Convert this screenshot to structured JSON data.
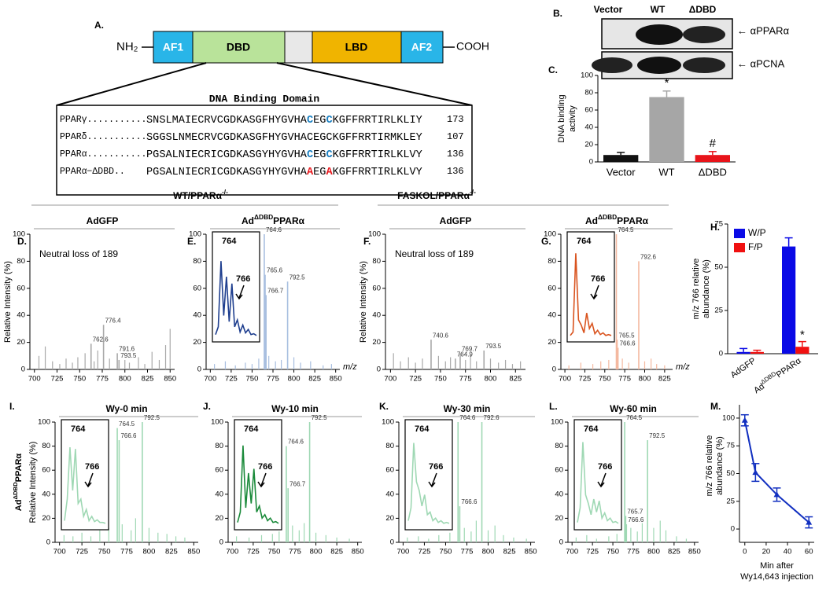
{
  "domain_diagram": {
    "panel": "A.",
    "n_term": "NH₂",
    "c_term": "COOH",
    "domains": [
      "AF1",
      "DBD",
      "LBD",
      "AF2"
    ]
  },
  "sequence_box": {
    "title": "DNA Binding Domain",
    "rows": [
      {
        "name": "PPARγ...........",
        "sequence": [
          "SNSLMAIECRVCGDKASGFHYGVHA",
          "C",
          "EG",
          "C",
          "KGFFRRTIRLKLIY"
        ],
        "end": "173",
        "highlight": "#1a7fc1"
      },
      {
        "name": "PPARδ...........",
        "sequence": [
          "SGGSLNMECRVCGDKASGFHYGVHACEGCKGFFRRTIRMKLEY"
        ],
        "end": "107"
      },
      {
        "name": "PPARα...........",
        "sequence": [
          "PGSALNIECRICGDKASGYHYGVHA",
          "C",
          "EG",
          "C",
          "KGFFRRTIRLKLVY"
        ],
        "end": "136",
        "highlight": "#1a7fc1"
      },
      {
        "name": "PPARα−ΔDBD..",
        "sequence": [
          "PGSALNIECRICGDKASGYHYGVHA",
          "A",
          "EG",
          "A",
          "KGFFRRTIRLKLVY"
        ],
        "end": "136",
        "highlight": "#e8141a"
      }
    ]
  },
  "blot": {
    "panel": "B.",
    "lanes": [
      "Vector",
      "WT",
      "ΔDBD"
    ],
    "antibodies": [
      "← αPPARα",
      "← αPCNA"
    ]
  },
  "groups": [
    [
      "WT/PPARα",
      "-/-"
    ],
    [
      "FASKOL/PPARα",
      "-/-"
    ]
  ],
  "chart_data": [
    {
      "type": "bar",
      "panel": "C.",
      "ylabel": [
        "DNA binding",
        "activity"
      ],
      "categories": [
        "Vector",
        "WT",
        "ΔDBD"
      ],
      "values": [
        8,
        75,
        8
      ],
      "errors": [
        3,
        7,
        4
      ],
      "colors": [
        "#111111",
        "#a6a6a6",
        "#e8141a"
      ],
      "annotations": [
        null,
        "*",
        "#"
      ],
      "ylim": [
        0,
        100
      ],
      "yticks": [
        0,
        20,
        40,
        60,
        80,
        100
      ]
    },
    {
      "type": "spectrum",
      "panel": "D.",
      "title": "AdGFP",
      "ylabel": "Relative Intensity (%)",
      "annotation": "Neutral loss of 189",
      "color": "#a9a9a9",
      "xlim": [
        695,
        855
      ],
      "xticks": [
        700,
        725,
        750,
        775,
        800,
        825,
        850
      ],
      "ylim": [
        0,
        100
      ],
      "yticks": [
        0,
        20,
        40,
        60,
        80,
        100
      ],
      "peaks": {
        "x": [
          776.4,
          762.6,
          791.6,
          793.5
        ],
        "values": [
          33,
          19,
          12,
          7
        ]
      },
      "minor": {
        "x": [
          705,
          712,
          720,
          728,
          735,
          742,
          748,
          756,
          766,
          770,
          783,
          800,
          805,
          815,
          822,
          830,
          838,
          845,
          850
        ],
        "values": [
          10,
          17,
          6,
          4,
          8,
          5,
          9,
          12,
          6,
          14,
          8,
          7,
          5,
          9,
          4,
          13,
          7,
          18,
          30
        ]
      }
    },
    {
      "type": "spectrum",
      "panel": "E.",
      "title": [
        "Ad",
        "ΔDBD",
        "PPARα"
      ],
      "xlabel": "m/z",
      "color": "#a8bfe0",
      "xlim": [
        695,
        855
      ],
      "xticks": [
        700,
        725,
        750,
        775,
        800,
        825,
        850
      ],
      "ylim": [
        0,
        100
      ],
      "yticks": [
        0,
        20,
        40,
        60,
        80,
        100
      ],
      "peaks": {
        "x": [
          764.6,
          765.6,
          766.7,
          792.5
        ],
        "values": [
          100,
          70,
          55,
          65
        ]
      },
      "minor": {
        "x": [
          705,
          718,
          730,
          742,
          750,
          758,
          770,
          778,
          785,
          800,
          808,
          820,
          835,
          845
        ],
        "values": [
          4,
          6,
          3,
          5,
          4,
          8,
          10,
          6,
          7,
          9,
          5,
          6,
          3,
          4
        ]
      },
      "inset": {
        "labels": [
          "764",
          "766"
        ],
        "color": "#1f3f8f",
        "values": [
          3,
          12,
          88,
          25,
          70,
          18,
          62,
          12,
          20,
          6,
          14,
          5,
          9,
          3,
          4,
          2
        ]
      }
    },
    {
      "type": "spectrum",
      "panel": "F.",
      "title": "AdGFP",
      "ylabel": "Relative Intensity (%)",
      "annotation": "Neutral loss of 189",
      "color": "#a9a9a9",
      "xlim": [
        695,
        835
      ],
      "xticks": [
        700,
        725,
        750,
        775,
        800,
        825
      ],
      "ylim": [
        0,
        100
      ],
      "yticks": [
        0,
        20,
        40,
        60,
        80,
        100
      ],
      "peaks": {
        "x": [
          740.6,
          764.9,
          769.7,
          793.5
        ],
        "values": [
          22,
          8,
          12,
          14
        ]
      },
      "minor": {
        "x": [
          703,
          710,
          718,
          725,
          732,
          748,
          755,
          760,
          775,
          780,
          786,
          800,
          808,
          815,
          822,
          830
        ],
        "values": [
          12,
          6,
          9,
          5,
          8,
          10,
          6,
          9,
          7,
          11,
          6,
          8,
          5,
          7,
          4,
          6
        ]
      }
    },
    {
      "type": "spectrum",
      "panel": "G.",
      "title": [
        "Ad",
        "ΔDBD",
        "PPARα"
      ],
      "xlabel": "m/z",
      "color": "#f4b9a0",
      "xlim": [
        695,
        835
      ],
      "xticks": [
        700,
        725,
        750,
        775,
        800,
        825
      ],
      "ylim": [
        0,
        100
      ],
      "yticks": [
        0,
        20,
        40,
        60,
        80,
        100
      ],
      "peaks": {
        "x": [
          764.5,
          792.6,
          765.5,
          766.6
        ],
        "values": [
          100,
          80,
          22,
          16
        ]
      },
      "minor": {
        "x": [
          705,
          720,
          735,
          745,
          755,
          772,
          780,
          800,
          808,
          815,
          825
        ],
        "values": [
          3,
          5,
          4,
          6,
          7,
          8,
          5,
          6,
          8,
          4,
          3
        ]
      },
      "inset": {
        "labels": [
          "764",
          "766"
        ],
        "color": "#d9531e",
        "values": [
          2,
          6,
          97,
          20,
          14,
          5,
          28,
          10,
          16,
          4,
          8,
          3,
          5,
          2,
          3,
          2
        ]
      }
    },
    {
      "type": "grouped_bar",
      "panel": "H.",
      "ylabel": [
        "m/z 766 relative",
        "abundance (%)"
      ],
      "categories": [
        "AdGFP",
        [
          "Ad",
          "ΔDBD",
          "PPARα"
        ]
      ],
      "legend": "top-left",
      "series": [
        {
          "name": "W/P",
          "color": "#0a0ae6",
          "values": [
            1,
            62
          ],
          "errors": [
            2,
            5
          ]
        },
        {
          "name": "F/P",
          "color": "#f01010",
          "values": [
            1,
            4
          ],
          "errors": [
            1,
            3
          ],
          "annotations": [
            null,
            "*"
          ]
        }
      ],
      "ylim": [
        0,
        75
      ],
      "yticks": [
        0,
        25,
        50,
        75
      ]
    },
    {
      "type": "spectrum",
      "panel": "I.",
      "title": "Wy-0 min",
      "ylabel_top": [
        "Ad",
        "ΔDBD",
        "PPARα"
      ],
      "ylabel": "Relative Intensity (%)",
      "color": "#9fd8b4",
      "xlim": [
        695,
        855
      ],
      "xticks": [
        700,
        725,
        750,
        775,
        800,
        825,
        850
      ],
      "ylim": [
        0,
        100
      ],
      "yticks": [
        0,
        20,
        40,
        60,
        80,
        100
      ],
      "peaks": {
        "x": [
          764.5,
          766.6,
          792.5
        ],
        "values": [
          95,
          85,
          100
        ]
      },
      "minor": {
        "x": [
          705,
          715,
          725,
          735,
          745,
          755,
          770,
          780,
          785,
          800,
          810,
          820,
          830,
          840
        ],
        "values": [
          6,
          5,
          8,
          5,
          10,
          12,
          15,
          10,
          20,
          12,
          8,
          7,
          5,
          4
        ]
      },
      "inset": {
        "labels": [
          "764",
          "766"
        ],
        "color": "#9fd8b4",
        "values": [
          5,
          30,
          90,
          40,
          88,
          25,
          30,
          10,
          18,
          5,
          10,
          4,
          6,
          3,
          3,
          2
        ]
      }
    },
    {
      "type": "spectrum",
      "panel": "J.",
      "title": "Wy-10 min",
      "color": "#9fd8b4",
      "xlim": [
        695,
        855
      ],
      "xticks": [
        700,
        725,
        750,
        775,
        800,
        825,
        850
      ],
      "ylim": [
        0,
        100
      ],
      "yticks": [
        0,
        20,
        40,
        60,
        80,
        100
      ],
      "peaks": {
        "x": [
          764.6,
          792.5,
          766.7
        ],
        "values": [
          80,
          100,
          45
        ]
      },
      "minor": {
        "x": [
          705,
          720,
          735,
          748,
          756,
          772,
          780,
          786,
          800,
          812,
          825,
          840
        ],
        "values": [
          5,
          4,
          6,
          7,
          9,
          14,
          10,
          16,
          8,
          6,
          4,
          3
        ]
      },
      "inset": {
        "labels": [
          "764",
          "766"
        ],
        "color": "#1a8a3a",
        "values": [
          3,
          15,
          92,
          20,
          60,
          25,
          65,
          15,
          22,
          8,
          12,
          5,
          8,
          3,
          4,
          2
        ]
      }
    },
    {
      "type": "spectrum",
      "panel": "K.",
      "title": "Wy-30 min",
      "color": "#9fd8b4",
      "xlim": [
        695,
        855
      ],
      "xticks": [
        700,
        725,
        750,
        775,
        800,
        825,
        850
      ],
      "ylim": [
        0,
        100
      ],
      "yticks": [
        0,
        20,
        40,
        60,
        80,
        100
      ],
      "peaks": {
        "x": [
          764.6,
          792.6,
          766.6
        ],
        "values": [
          100,
          100,
          30
        ]
      },
      "minor": {
        "x": [
          705,
          718,
          730,
          742,
          755,
          772,
          780,
          786,
          800,
          808,
          818,
          830,
          845
        ],
        "values": [
          4,
          5,
          3,
          6,
          8,
          12,
          9,
          18,
          10,
          14,
          6,
          4,
          3
        ]
      },
      "inset": {
        "labels": [
          "764",
          "766"
        ],
        "color": "#9fd8b4",
        "values": [
          5,
          20,
          95,
          50,
          40,
          22,
          35,
          12,
          15,
          5,
          8,
          3,
          5,
          2,
          3,
          2
        ]
      }
    },
    {
      "type": "spectrum",
      "panel": "L.",
      "title": "Wy-60 min",
      "color": "#9fd8b4",
      "xlim": [
        695,
        855
      ],
      "xticks": [
        700,
        725,
        750,
        775,
        800,
        825,
        850
      ],
      "ylim": [
        0,
        100
      ],
      "yticks": [
        0,
        20,
        40,
        60,
        80,
        100
      ],
      "peaks": {
        "x": [
          764.5,
          792.5,
          765.7,
          766.6
        ],
        "values": [
          100,
          85,
          22,
          15
        ]
      },
      "minor": {
        "x": [
          705,
          718,
          730,
          745,
          755,
          772,
          780,
          786,
          800,
          808,
          815,
          828,
          840
        ],
        "values": [
          4,
          6,
          3,
          5,
          7,
          12,
          9,
          16,
          12,
          18,
          10,
          5,
          3
        ]
      },
      "inset": {
        "labels": [
          "764",
          "766"
        ],
        "color": "#9fd8b4",
        "values": [
          3,
          20,
          96,
          35,
          25,
          12,
          30,
          15,
          28,
          8,
          14,
          5,
          8,
          3,
          4,
          2
        ]
      }
    },
    {
      "type": "line",
      "panel": "M.",
      "x": [
        0,
        10,
        30,
        60
      ],
      "values": [
        98,
        51,
        31,
        6
      ],
      "errors": [
        5,
        8,
        6,
        5
      ],
      "color": "#1230c0",
      "xlim": [
        -5,
        65
      ],
      "xticks": [
        0,
        20,
        40,
        60
      ],
      "ylim": [
        -12,
        112
      ],
      "yticks": [
        0,
        25,
        50,
        75,
        100
      ],
      "xlabel": [
        "Min after",
        "Wy14,643 injection"
      ],
      "ylabel": [
        "m/z 766 relative",
        "abundance (%)"
      ]
    }
  ]
}
